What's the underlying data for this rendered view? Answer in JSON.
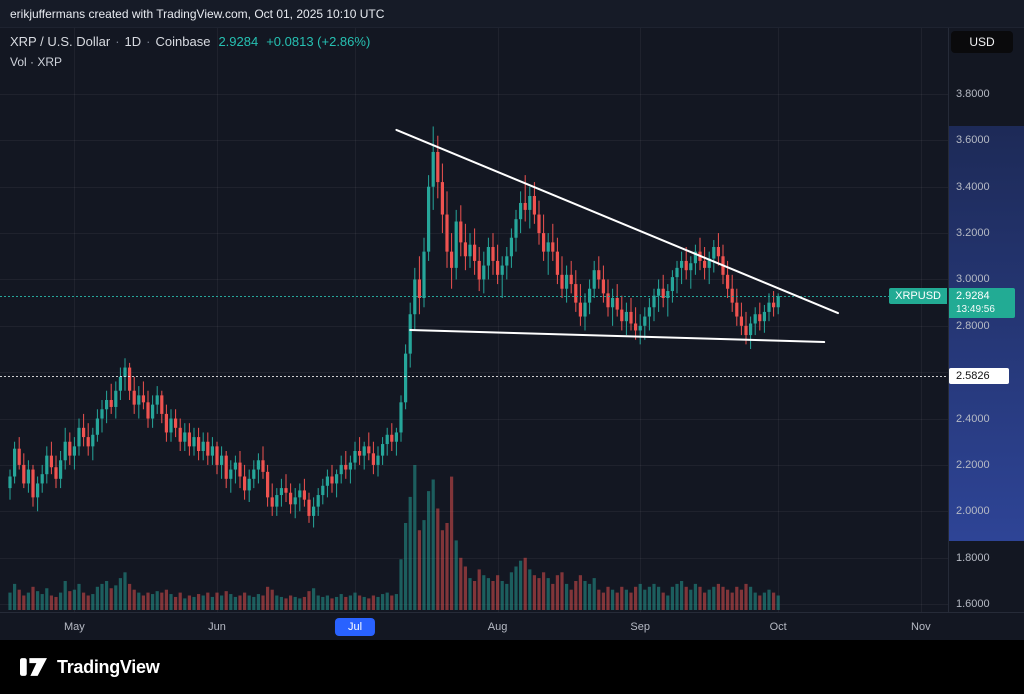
{
  "attribution": {
    "text": "erikjuffermans created with TradingView.com, Oct 01, 2025 10:10 UTC"
  },
  "header": {
    "symbol": "XRP / U.S. Dollar",
    "sep": "·",
    "interval": "1D",
    "exchange": "Coinbase",
    "price": "2.9284",
    "change": "+0.0813 (+2.86%)",
    "volume_label": "Vol · XRP"
  },
  "price_scale": {
    "currency_button": "USD",
    "labels": [
      "3.8000",
      "3.6000",
      "3.4000",
      "3.2000",
      "3.0000",
      "2.8000",
      "2.4000",
      "2.2000",
      "2.0000",
      "1.8000",
      "1.6000"
    ],
    "symbol_badge": "XRPUSD",
    "price_badge": {
      "price": "2.9284",
      "countdown": "13:49:56",
      "value": 2.9284
    },
    "level_badge": {
      "label": "2.5826",
      "value": 2.5826
    },
    "band": {
      "top_value": 3.66,
      "bottom_value": 1.87
    }
  },
  "time_scale": {
    "labels": [
      {
        "text": "May",
        "index": 14
      },
      {
        "text": "Jun",
        "index": 45
      },
      {
        "text": "Jul",
        "index": 75,
        "highlighted": true
      },
      {
        "text": "Aug",
        "index": 106
      },
      {
        "text": "Sep",
        "index": 137
      },
      {
        "text": "Oct",
        "index": 167
      },
      {
        "text": "Nov",
        "index": 198
      }
    ]
  },
  "footer": {
    "brand": "TradingView"
  },
  "colors": {
    "up": "#26a69a",
    "down": "#ef5350",
    "volume_up": "rgba(38,166,154,0.5)",
    "volume_down": "rgba(239,83,80,0.5)",
    "badge": "#22ab94",
    "highlight": "#2962ff",
    "trendline": "#ffffff",
    "change_text": "#26c0b2",
    "band_top": "#1d2a57",
    "band_bottom": "#2e4496"
  },
  "chart_data": {
    "type": "candlestick",
    "symbol": "XRPUSD",
    "title": "XRP / U.S. Dollar · 1D · Coinbase",
    "interval": "1D",
    "exchange": "Coinbase",
    "currency": "USD",
    "last_price": 2.9284,
    "change_abs": 0.0813,
    "change_pct": 2.86,
    "y_axis": {
      "min": 1.55,
      "max": 3.9,
      "ticks": [
        1.6,
        1.8,
        2.0,
        2.2,
        2.4,
        2.6,
        2.8,
        3.0,
        3.2,
        3.4,
        3.6,
        3.8
      ]
    },
    "x_tick_labels": [
      "May",
      "Jun",
      "Jul",
      "Aug",
      "Sep",
      "Oct",
      "Nov"
    ],
    "price_lines": [
      {
        "value": 2.9284,
        "style": "dotted",
        "color": "#26a69a",
        "opacity": 1
      },
      {
        "value": 2.5826,
        "style": "dotted",
        "color": "#ffffff",
        "opacity": 0.8
      }
    ],
    "trendlines": [
      {
        "name": "descending-resistance",
        "from_index": 84,
        "from_price": 3.645,
        "to_index": 180,
        "to_price": 2.855
      },
      {
        "name": "support",
        "from_index": 87,
        "from_price": 2.782,
        "to_index": 177,
        "to_price": 2.73
      }
    ],
    "volume_unit": "relative-0-100",
    "candles": [
      [
        2.1,
        2.18,
        2.05,
        2.15,
        12
      ],
      [
        2.15,
        2.3,
        2.12,
        2.27,
        18
      ],
      [
        2.27,
        2.32,
        2.18,
        2.2,
        14
      ],
      [
        2.2,
        2.25,
        2.1,
        2.12,
        10
      ],
      [
        2.12,
        2.22,
        2.08,
        2.18,
        12
      ],
      [
        2.18,
        2.2,
        2.02,
        2.06,
        16
      ],
      [
        2.06,
        2.15,
        2.0,
        2.12,
        13
      ],
      [
        2.12,
        2.2,
        2.08,
        2.16,
        11
      ],
      [
        2.16,
        2.28,
        2.12,
        2.24,
        15
      ],
      [
        2.24,
        2.3,
        2.16,
        2.19,
        10
      ],
      [
        2.19,
        2.24,
        2.1,
        2.14,
        9
      ],
      [
        2.14,
        2.26,
        2.1,
        2.22,
        12
      ],
      [
        2.22,
        2.36,
        2.18,
        2.3,
        20
      ],
      [
        2.3,
        2.34,
        2.2,
        2.24,
        13
      ],
      [
        2.24,
        2.32,
        2.18,
        2.28,
        14
      ],
      [
        2.28,
        2.4,
        2.24,
        2.36,
        18
      ],
      [
        2.36,
        2.42,
        2.28,
        2.32,
        12
      ],
      [
        2.32,
        2.38,
        2.24,
        2.28,
        10
      ],
      [
        2.28,
        2.36,
        2.22,
        2.33,
        11
      ],
      [
        2.33,
        2.44,
        2.3,
        2.4,
        16
      ],
      [
        2.4,
        2.48,
        2.34,
        2.44,
        18
      ],
      [
        2.44,
        2.52,
        2.38,
        2.48,
        20
      ],
      [
        2.48,
        2.55,
        2.42,
        2.45,
        15
      ],
      [
        2.45,
        2.56,
        2.4,
        2.52,
        17
      ],
      [
        2.52,
        2.62,
        2.48,
        2.58,
        22
      ],
      [
        2.58,
        2.66,
        2.52,
        2.62,
        26
      ],
      [
        2.62,
        2.64,
        2.48,
        2.52,
        18
      ],
      [
        2.52,
        2.58,
        2.42,
        2.46,
        14
      ],
      [
        2.46,
        2.54,
        2.4,
        2.5,
        12
      ],
      [
        2.5,
        2.56,
        2.44,
        2.47,
        10
      ],
      [
        2.47,
        2.52,
        2.36,
        2.4,
        12
      ],
      [
        2.4,
        2.5,
        2.36,
        2.46,
        11
      ],
      [
        2.46,
        2.54,
        2.42,
        2.5,
        13
      ],
      [
        2.5,
        2.52,
        2.38,
        2.42,
        12
      ],
      [
        2.42,
        2.46,
        2.3,
        2.34,
        14
      ],
      [
        2.34,
        2.44,
        2.3,
        2.4,
        11
      ],
      [
        2.4,
        2.44,
        2.32,
        2.36,
        9
      ],
      [
        2.36,
        2.4,
        2.26,
        2.3,
        12
      ],
      [
        2.3,
        2.38,
        2.26,
        2.34,
        8
      ],
      [
        2.34,
        2.38,
        2.24,
        2.28,
        10
      ],
      [
        2.28,
        2.36,
        2.24,
        2.32,
        9
      ],
      [
        2.32,
        2.36,
        2.22,
        2.26,
        11
      ],
      [
        2.26,
        2.34,
        2.22,
        2.3,
        10
      ],
      [
        2.3,
        2.34,
        2.2,
        2.24,
        12
      ],
      [
        2.24,
        2.32,
        2.2,
        2.28,
        9
      ],
      [
        2.28,
        2.3,
        2.16,
        2.2,
        12
      ],
      [
        2.2,
        2.28,
        2.14,
        2.24,
        10
      ],
      [
        2.24,
        2.26,
        2.1,
        2.14,
        13
      ],
      [
        2.14,
        2.22,
        2.08,
        2.18,
        11
      ],
      [
        2.18,
        2.24,
        2.12,
        2.21,
        9
      ],
      [
        2.21,
        2.26,
        2.1,
        2.15,
        10
      ],
      [
        2.15,
        2.2,
        2.05,
        2.09,
        12
      ],
      [
        2.09,
        2.18,
        2.04,
        2.14,
        10
      ],
      [
        2.14,
        2.22,
        2.1,
        2.18,
        9
      ],
      [
        2.18,
        2.25,
        2.12,
        2.22,
        11
      ],
      [
        2.22,
        2.28,
        2.14,
        2.17,
        10
      ],
      [
        2.17,
        2.2,
        2.02,
        2.06,
        16
      ],
      [
        2.06,
        2.12,
        1.98,
        2.02,
        14
      ],
      [
        2.02,
        2.1,
        1.98,
        2.07,
        10
      ],
      [
        2.07,
        2.14,
        2.02,
        2.1,
        9
      ],
      [
        2.1,
        2.16,
        2.04,
        2.08,
        8
      ],
      [
        2.08,
        2.12,
        1.99,
        2.03,
        10
      ],
      [
        2.03,
        2.1,
        1.97,
        2.06,
        9
      ],
      [
        2.06,
        2.12,
        2.0,
        2.09,
        8
      ],
      [
        2.09,
        2.14,
        2.02,
        2.05,
        9
      ],
      [
        2.05,
        2.08,
        1.95,
        1.98,
        13
      ],
      [
        1.98,
        2.06,
        1.93,
        2.02,
        15
      ],
      [
        2.02,
        2.1,
        1.98,
        2.07,
        10
      ],
      [
        2.07,
        2.14,
        2.03,
        2.11,
        9
      ],
      [
        2.11,
        2.18,
        2.06,
        2.15,
        10
      ],
      [
        2.15,
        2.2,
        2.08,
        2.12,
        8
      ],
      [
        2.12,
        2.18,
        2.06,
        2.16,
        9
      ],
      [
        2.16,
        2.24,
        2.12,
        2.2,
        11
      ],
      [
        2.2,
        2.26,
        2.14,
        2.18,
        9
      ],
      [
        2.18,
        2.24,
        2.12,
        2.21,
        10
      ],
      [
        2.21,
        2.3,
        2.18,
        2.26,
        12
      ],
      [
        2.26,
        2.32,
        2.2,
        2.24,
        10
      ],
      [
        2.24,
        2.3,
        2.18,
        2.28,
        9
      ],
      [
        2.28,
        2.34,
        2.22,
        2.25,
        8
      ],
      [
        2.25,
        2.3,
        2.16,
        2.2,
        10
      ],
      [
        2.2,
        2.28,
        2.15,
        2.24,
        9
      ],
      [
        2.24,
        2.32,
        2.2,
        2.29,
        11
      ],
      [
        2.29,
        2.36,
        2.24,
        2.33,
        12
      ],
      [
        2.33,
        2.38,
        2.26,
        2.3,
        10
      ],
      [
        2.3,
        2.36,
        2.24,
        2.34,
        11
      ],
      [
        2.34,
        2.5,
        2.3,
        2.47,
        35
      ],
      [
        2.47,
        2.72,
        2.44,
        2.68,
        60
      ],
      [
        2.68,
        2.9,
        2.62,
        2.85,
        78
      ],
      [
        2.85,
        3.05,
        2.78,
        3.0,
        100
      ],
      [
        3.0,
        3.1,
        2.85,
        2.92,
        55
      ],
      [
        2.92,
        3.18,
        2.88,
        3.12,
        62
      ],
      [
        3.12,
        3.45,
        3.08,
        3.4,
        82
      ],
      [
        3.4,
        3.66,
        3.3,
        3.55,
        90
      ],
      [
        3.55,
        3.62,
        3.35,
        3.42,
        70
      ],
      [
        3.42,
        3.5,
        3.2,
        3.28,
        55
      ],
      [
        3.28,
        3.38,
        3.05,
        3.12,
        60
      ],
      [
        3.12,
        3.2,
        2.96,
        3.05,
        92
      ],
      [
        3.05,
        3.3,
        3.0,
        3.25,
        48
      ],
      [
        3.25,
        3.32,
        3.1,
        3.16,
        36
      ],
      [
        3.16,
        3.24,
        3.04,
        3.1,
        30
      ],
      [
        3.1,
        3.2,
        3.05,
        3.15,
        22
      ],
      [
        3.15,
        3.22,
        3.02,
        3.08,
        20
      ],
      [
        3.08,
        3.14,
        2.95,
        3.0,
        28
      ],
      [
        3.0,
        3.12,
        2.94,
        3.06,
        24
      ],
      [
        3.06,
        3.18,
        3.0,
        3.14,
        22
      ],
      [
        3.14,
        3.2,
        3.02,
        3.08,
        20
      ],
      [
        3.08,
        3.15,
        2.98,
        3.02,
        24
      ],
      [
        3.02,
        3.1,
        2.92,
        3.06,
        20
      ],
      [
        3.06,
        3.14,
        3.0,
        3.1,
        18
      ],
      [
        3.1,
        3.22,
        3.05,
        3.18,
        26
      ],
      [
        3.18,
        3.3,
        3.12,
        3.26,
        30
      ],
      [
        3.26,
        3.38,
        3.2,
        3.33,
        34
      ],
      [
        3.33,
        3.45,
        3.25,
        3.3,
        36
      ],
      [
        3.3,
        3.4,
        3.22,
        3.36,
        28
      ],
      [
        3.36,
        3.42,
        3.24,
        3.28,
        24
      ],
      [
        3.28,
        3.34,
        3.15,
        3.2,
        22
      ],
      [
        3.2,
        3.28,
        3.08,
        3.12,
        26
      ],
      [
        3.12,
        3.2,
        3.02,
        3.16,
        22
      ],
      [
        3.16,
        3.24,
        3.08,
        3.12,
        18
      ],
      [
        3.12,
        3.18,
        2.98,
        3.02,
        24
      ],
      [
        3.02,
        3.1,
        2.92,
        2.96,
        26
      ],
      [
        2.96,
        3.06,
        2.9,
        3.02,
        18
      ],
      [
        3.02,
        3.08,
        2.94,
        2.98,
        14
      ],
      [
        2.98,
        3.04,
        2.86,
        2.9,
        20
      ],
      [
        2.9,
        2.98,
        2.8,
        2.84,
        24
      ],
      [
        2.84,
        2.94,
        2.78,
        2.9,
        20
      ],
      [
        2.9,
        3.0,
        2.85,
        2.96,
        18
      ],
      [
        2.96,
        3.08,
        2.92,
        3.04,
        22
      ],
      [
        3.04,
        3.1,
        2.96,
        3.0,
        14
      ],
      [
        3.0,
        3.06,
        2.9,
        2.94,
        12
      ],
      [
        2.94,
        3.0,
        2.84,
        2.88,
        16
      ],
      [
        2.88,
        2.96,
        2.8,
        2.92,
        14
      ],
      [
        2.92,
        2.98,
        2.84,
        2.87,
        12
      ],
      [
        2.87,
        2.93,
        2.78,
        2.82,
        16
      ],
      [
        2.82,
        2.9,
        2.76,
        2.86,
        14
      ],
      [
        2.86,
        2.92,
        2.78,
        2.81,
        12
      ],
      [
        2.81,
        2.88,
        2.74,
        2.78,
        16
      ],
      [
        2.78,
        2.85,
        2.72,
        2.8,
        18
      ],
      [
        2.8,
        2.88,
        2.74,
        2.84,
        14
      ],
      [
        2.84,
        2.92,
        2.78,
        2.88,
        16
      ],
      [
        2.88,
        2.96,
        2.82,
        2.93,
        18
      ],
      [
        2.93,
        3.0,
        2.86,
        2.96,
        16
      ],
      [
        2.96,
        3.02,
        2.88,
        2.92,
        12
      ],
      [
        2.92,
        2.98,
        2.84,
        2.95,
        10
      ],
      [
        2.95,
        3.04,
        2.9,
        3.01,
        16
      ],
      [
        3.01,
        3.08,
        2.94,
        3.05,
        18
      ],
      [
        3.05,
        3.12,
        2.98,
        3.08,
        20
      ],
      [
        3.08,
        3.14,
        3.0,
        3.04,
        16
      ],
      [
        3.04,
        3.1,
        2.96,
        3.07,
        14
      ],
      [
        3.07,
        3.15,
        3.02,
        3.12,
        18
      ],
      [
        3.12,
        3.18,
        3.04,
        3.08,
        16
      ],
      [
        3.08,
        3.14,
        3.0,
        3.05,
        12
      ],
      [
        3.05,
        3.12,
        2.98,
        3.09,
        14
      ],
      [
        3.09,
        3.17,
        3.03,
        3.14,
        16
      ],
      [
        3.14,
        3.2,
        3.06,
        3.1,
        18
      ],
      [
        3.1,
        3.15,
        2.98,
        3.02,
        16
      ],
      [
        3.02,
        3.08,
        2.92,
        2.96,
        14
      ],
      [
        2.96,
        3.02,
        2.86,
        2.9,
        12
      ],
      [
        2.9,
        2.96,
        2.8,
        2.84,
        16
      ],
      [
        2.84,
        2.9,
        2.76,
        2.8,
        14
      ],
      [
        2.8,
        2.86,
        2.72,
        2.76,
        18
      ],
      [
        2.76,
        2.84,
        2.7,
        2.81,
        16
      ],
      [
        2.81,
        2.88,
        2.76,
        2.85,
        12
      ],
      [
        2.85,
        2.9,
        2.78,
        2.82,
        10
      ],
      [
        2.82,
        2.89,
        2.77,
        2.86,
        12
      ],
      [
        2.86,
        2.94,
        2.82,
        2.9,
        14
      ],
      [
        2.9,
        2.95,
        2.84,
        2.88,
        12
      ],
      [
        2.88,
        2.94,
        2.85,
        2.9284,
        10
      ]
    ]
  }
}
